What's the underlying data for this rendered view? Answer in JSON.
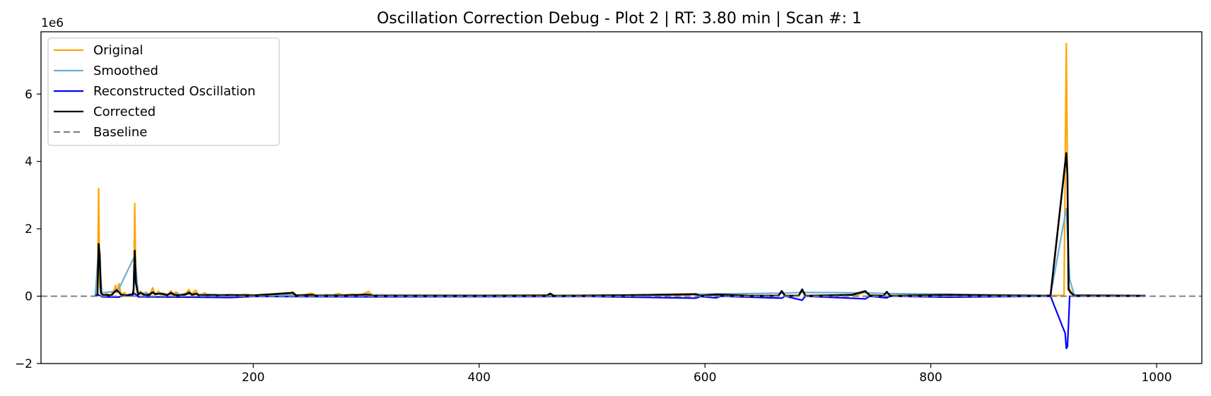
{
  "chart_data": {
    "type": "line",
    "title": "Oscillation Correction Debug - Plot 2 | RT: 3.80 min | Scan #: 1",
    "xlabel": "",
    "ylabel": "",
    "y_scale_label": "1e6",
    "xlim": [
      12,
      1040
    ],
    "ylim": [
      -2000000,
      7850000
    ],
    "x_ticks": [
      200,
      400,
      600,
      800,
      1000
    ],
    "y_ticks": [
      -2000000,
      0,
      2000000,
      4000000,
      6000000
    ],
    "y_tick_labels": [
      "−2",
      "0",
      "2",
      "4",
      "6"
    ],
    "grid": false,
    "legend_position": "top-left",
    "series": [
      {
        "name": "Original",
        "color": "#ffa500",
        "style": "solid",
        "points": [
          [
            60,
            0
          ],
          [
            62,
            80000
          ],
          [
            63,
            3200000
          ],
          [
            64,
            300000
          ],
          [
            66,
            20000
          ],
          [
            70,
            60000
          ],
          [
            74,
            30000
          ],
          [
            77,
            200000
          ],
          [
            78,
            320000
          ],
          [
            79,
            100000
          ],
          [
            81,
            370000
          ],
          [
            83,
            40000
          ],
          [
            86,
            110000
          ],
          [
            88,
            20000
          ],
          [
            90,
            60000
          ],
          [
            93,
            10000
          ],
          [
            94,
            50000
          ],
          [
            95,
            2750000
          ],
          [
            96,
            400000
          ],
          [
            98,
            80000
          ],
          [
            100,
            150000
          ],
          [
            103,
            40000
          ],
          [
            105,
            120000
          ],
          [
            108,
            20000
          ],
          [
            111,
            250000
          ],
          [
            113,
            60000
          ],
          [
            116,
            150000
          ],
          [
            118,
            50000
          ],
          [
            121,
            90000
          ],
          [
            124,
            20000
          ],
          [
            127,
            160000
          ],
          [
            129,
            80000
          ],
          [
            132,
            120000
          ],
          [
            135,
            30000
          ],
          [
            138,
            60000
          ],
          [
            141,
            110000
          ],
          [
            143,
            200000
          ],
          [
            145,
            60000
          ],
          [
            149,
            180000
          ],
          [
            152,
            20000
          ],
          [
            157,
            100000
          ],
          [
            160,
            30000
          ],
          [
            166,
            60000
          ],
          [
            172,
            20000
          ],
          [
            178,
            50000
          ],
          [
            186,
            30000
          ],
          [
            193,
            60000
          ],
          [
            200,
            30000
          ],
          [
            210,
            50000
          ],
          [
            220,
            30000
          ],
          [
            230,
            50000
          ],
          [
            235,
            130000
          ],
          [
            238,
            30000
          ],
          [
            245,
            40000
          ],
          [
            252,
            90000
          ],
          [
            256,
            20000
          ],
          [
            265,
            50000
          ],
          [
            270,
            30000
          ],
          [
            275,
            80000
          ],
          [
            280,
            30000
          ],
          [
            288,
            60000
          ],
          [
            295,
            30000
          ],
          [
            302,
            140000
          ],
          [
            306,
            20000
          ],
          [
            320,
            30000
          ],
          [
            400,
            20000
          ],
          [
            460,
            30000
          ],
          [
            463,
            60000
          ],
          [
            466,
            20000
          ],
          [
            520,
            20000
          ],
          [
            540,
            40000
          ],
          [
            580,
            20000
          ],
          [
            592,
            50000
          ],
          [
            596,
            20000
          ],
          [
            610,
            40000
          ],
          [
            640,
            20000
          ],
          [
            665,
            20000
          ],
          [
            668,
            130000
          ],
          [
            671,
            20000
          ],
          [
            683,
            20000
          ],
          [
            686,
            150000
          ],
          [
            689,
            20000
          ],
          [
            735,
            30000
          ],
          [
            742,
            120000
          ],
          [
            746,
            30000
          ],
          [
            758,
            20000
          ],
          [
            761,
            100000
          ],
          [
            764,
            20000
          ],
          [
            815,
            30000
          ],
          [
            832,
            40000
          ],
          [
            900,
            20000
          ],
          [
            915,
            20000
          ],
          [
            918,
            30000
          ],
          [
            920,
            7500000
          ],
          [
            922,
            300000
          ],
          [
            924,
            150000
          ],
          [
            927,
            30000
          ],
          [
            990,
            20000
          ]
        ]
      },
      {
        "name": "Smoothed",
        "color": "#6baed6",
        "style": "solid",
        "points": [
          [
            60,
            0
          ],
          [
            63,
            1400000
          ],
          [
            66,
            100000
          ],
          [
            80,
            150000
          ],
          [
            95,
            1200000
          ],
          [
            98,
            100000
          ],
          [
            120,
            60000
          ],
          [
            150,
            60000
          ],
          [
            200,
            30000
          ],
          [
            300,
            40000
          ],
          [
            500,
            20000
          ],
          [
            668,
            90000
          ],
          [
            686,
            110000
          ],
          [
            742,
            100000
          ],
          [
            761,
            80000
          ],
          [
            906,
            20000
          ],
          [
            920,
            2600000
          ],
          [
            923,
            500000
          ],
          [
            927,
            30000
          ],
          [
            990,
            20000
          ]
        ]
      },
      {
        "name": "Reconstructed Oscillation",
        "color": "#0000ff",
        "style": "solid",
        "points": [
          [
            60,
            0
          ],
          [
            63,
            40000
          ],
          [
            66,
            -20000
          ],
          [
            80,
            -30000
          ],
          [
            95,
            80000
          ],
          [
            98,
            -20000
          ],
          [
            150,
            -30000
          ],
          [
            180,
            -40000
          ],
          [
            200,
            -10000
          ],
          [
            300,
            -20000
          ],
          [
            500,
            -10000
          ],
          [
            592,
            -60000
          ],
          [
            596,
            -10000
          ],
          [
            610,
            -50000
          ],
          [
            614,
            0
          ],
          [
            668,
            -60000
          ],
          [
            671,
            0
          ],
          [
            686,
            -120000
          ],
          [
            689,
            0
          ],
          [
            742,
            -80000
          ],
          [
            746,
            0
          ],
          [
            761,
            -50000
          ],
          [
            764,
            0
          ],
          [
            815,
            -30000
          ],
          [
            906,
            0
          ],
          [
            919,
            -1100000
          ],
          [
            920,
            -1550000
          ],
          [
            921,
            -1500000
          ],
          [
            922,
            -800000
          ],
          [
            923,
            0
          ],
          [
            990,
            0
          ]
        ]
      },
      {
        "name": "Corrected",
        "color": "#000000",
        "style": "solid",
        "points": [
          [
            60,
            0
          ],
          [
            62,
            50000
          ],
          [
            63,
            1550000
          ],
          [
            64,
            1200000
          ],
          [
            65,
            100000
          ],
          [
            67,
            30000
          ],
          [
            70,
            40000
          ],
          [
            74,
            20000
          ],
          [
            77,
            120000
          ],
          [
            79,
            180000
          ],
          [
            81,
            120000
          ],
          [
            83,
            40000
          ],
          [
            88,
            20000
          ],
          [
            93,
            20000
          ],
          [
            94,
            200000
          ],
          [
            95,
            1350000
          ],
          [
            96,
            400000
          ],
          [
            98,
            40000
          ],
          [
            100,
            100000
          ],
          [
            104,
            30000
          ],
          [
            108,
            40000
          ],
          [
            111,
            120000
          ],
          [
            113,
            60000
          ],
          [
            118,
            80000
          ],
          [
            124,
            30000
          ],
          [
            127,
            100000
          ],
          [
            130,
            40000
          ],
          [
            135,
            20000
          ],
          [
            141,
            60000
          ],
          [
            143,
            110000
          ],
          [
            146,
            40000
          ],
          [
            149,
            80000
          ],
          [
            152,
            20000
          ],
          [
            160,
            30000
          ],
          [
            170,
            20000
          ],
          [
            180,
            30000
          ],
          [
            200,
            20000
          ],
          [
            235,
            100000
          ],
          [
            238,
            20000
          ],
          [
            252,
            40000
          ],
          [
            256,
            10000
          ],
          [
            280,
            20000
          ],
          [
            302,
            50000
          ],
          [
            306,
            10000
          ],
          [
            400,
            10000
          ],
          [
            460,
            20000
          ],
          [
            463,
            80000
          ],
          [
            466,
            10000
          ],
          [
            540,
            30000
          ],
          [
            592,
            60000
          ],
          [
            596,
            10000
          ],
          [
            610,
            50000
          ],
          [
            640,
            10000
          ],
          [
            665,
            10000
          ],
          [
            668,
            150000
          ],
          [
            671,
            10000
          ],
          [
            683,
            10000
          ],
          [
            686,
            200000
          ],
          [
            689,
            10000
          ],
          [
            730,
            40000
          ],
          [
            742,
            150000
          ],
          [
            746,
            20000
          ],
          [
            758,
            10000
          ],
          [
            761,
            130000
          ],
          [
            764,
            10000
          ],
          [
            815,
            40000
          ],
          [
            832,
            30000
          ],
          [
            900,
            10000
          ],
          [
            906,
            20000
          ],
          [
            920,
            4250000
          ],
          [
            921,
            3600000
          ],
          [
            922,
            200000
          ],
          [
            924,
            100000
          ],
          [
            927,
            20000
          ],
          [
            990,
            10000
          ]
        ]
      },
      {
        "name": "Baseline",
        "color": "#808080",
        "style": "dashed",
        "points": [
          [
            12,
            0
          ],
          [
            1040,
            0
          ]
        ]
      }
    ]
  }
}
